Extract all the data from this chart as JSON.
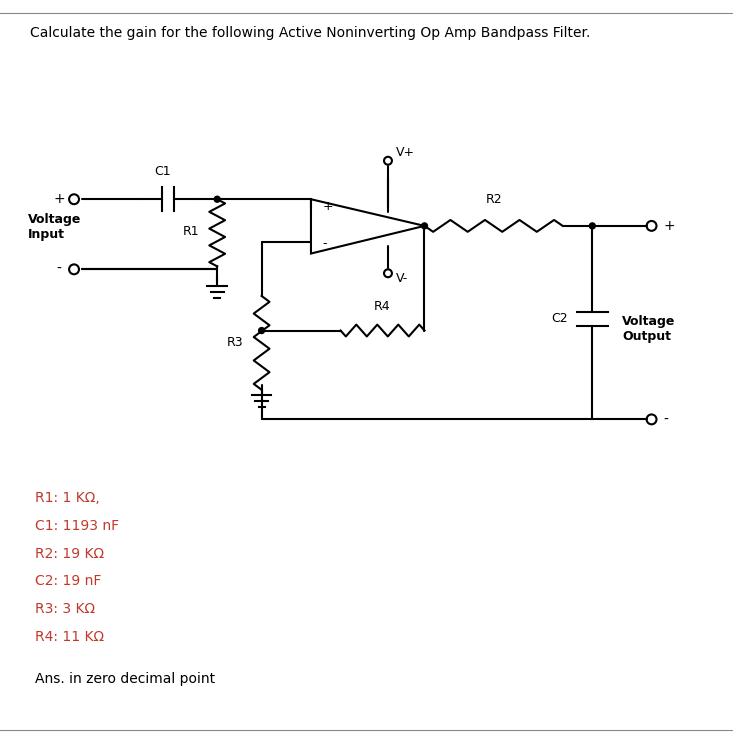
{
  "title": "Calculate the gain for the following Active Noninverting Op Amp Bandpass Filter.",
  "title_color": "#000000",
  "title_fontsize": 10,
  "bg_color": "#ffffff",
  "component_color": "#000000",
  "label_color": "#000000",
  "component_label_fontsize": 9,
  "value_label_color": "#c0392b",
  "value_label_fontsize": 10,
  "labels": {
    "R1": "R1: 1 KΩ,",
    "C1": "C1: 1193 nF",
    "R2": "R2: 19 KΩ",
    "C2": "C2: 19 nF",
    "R3": "R3: 3 KΩ",
    "R4": "R4: 11 KΩ"
  },
  "ans_text": "Ans. in zero decimal point",
  "ans_fontsize": 10
}
